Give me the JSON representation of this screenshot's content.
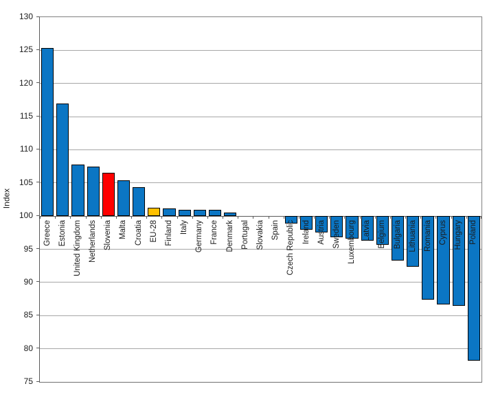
{
  "chart_data": {
    "type": "bar",
    "title": "",
    "xlabel": "",
    "ylabel": "Index",
    "ylim": [
      75,
      130
    ],
    "ytick_step": 5,
    "baseline": 100,
    "grid": true,
    "legend_position": "none",
    "categories": [
      "Greece",
      "Estonia",
      "United Kingdom",
      "Netherlands",
      "Slovenia",
      "Malta",
      "Croatia",
      "EU-28",
      "Finland",
      "Italy",
      "Germany",
      "France",
      "Denmark",
      "Portugal",
      "Slovakia",
      "Spain",
      "Czech Republic",
      "Ireland",
      "Austria",
      "Sweden",
      "Luxembourg",
      "Latvia",
      "Belgium",
      "Bulgaria",
      "Lithuania",
      "Romania",
      "Cyprus",
      "Hungary",
      "Poland"
    ],
    "values": [
      125.3,
      117.0,
      107.8,
      107.5,
      106.5,
      105.4,
      104.4,
      101.3,
      101.2,
      100.9,
      100.9,
      100.9,
      100.5,
      100.0,
      100.0,
      100.0,
      98.9,
      97.9,
      97.5,
      96.8,
      96.6,
      96.3,
      95.7,
      93.3,
      92.4,
      87.4,
      86.7,
      86.5,
      78.2
    ],
    "default_bar_color": "#0B76C4",
    "bar_color_overrides": {
      "Slovenia": "#FF0000",
      "EU-28": "#FFC000"
    },
    "bar_border_color": "#000000"
  },
  "style_colors": {
    "gridline": "#A6A6A6",
    "plot_border": "#808080",
    "axis_line": "#595959",
    "text": "#1A1A1A"
  }
}
